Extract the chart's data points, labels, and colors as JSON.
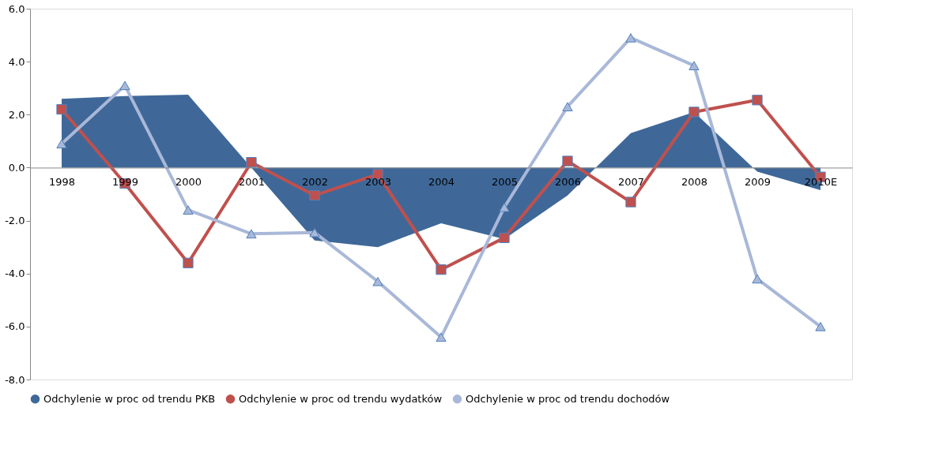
{
  "chart_data": {
    "type": "line",
    "categories": [
      "1998",
      "1999",
      "2000",
      "2001",
      "2002",
      "2003",
      "2004",
      "2005",
      "2006",
      "2007",
      "2008",
      "2009",
      "2010E"
    ],
    "series": [
      {
        "name": "Odchylenie w proc od trendu PKB",
        "type": "area",
        "color": "#3f6899",
        "values": [
          2.6,
          2.7,
          2.75,
          0.0,
          -2.75,
          -3.0,
          -2.1,
          -2.7,
          -1.05,
          1.3,
          2.1,
          -0.15,
          -0.85
        ]
      },
      {
        "name": "Odchylenie w proc od trendu wydatków",
        "marker": "square",
        "color": "#c0504d",
        "values": [
          2.2,
          -0.6,
          -3.6,
          0.2,
          -1.05,
          -0.25,
          -3.85,
          -2.65,
          0.25,
          -1.3,
          2.1,
          2.55,
          -0.35
        ]
      },
      {
        "name": "Odchylenie w proc od trendu dochodów",
        "marker": "triangle",
        "color": "#a9b8d8",
        "values": [
          0.9,
          3.1,
          -1.6,
          -2.5,
          -2.45,
          -4.3,
          -6.4,
          -1.5,
          2.3,
          4.9,
          3.85,
          -4.2,
          -6.0
        ]
      }
    ],
    "ylim": [
      -8,
      6
    ],
    "yticks": [
      {
        "value": -8,
        "label": "-8.0"
      },
      {
        "value": -6,
        "label": "-6.0"
      },
      {
        "value": -4,
        "label": "-4.0"
      },
      {
        "value": -2,
        "label": "-2.0"
      },
      {
        "value": 0,
        "label": "0.0"
      },
      {
        "value": 2,
        "label": "2.0"
      },
      {
        "value": 4,
        "label": "4.0"
      },
      {
        "value": 6,
        "label": "6.0"
      }
    ],
    "grid": false,
    "legend": "bottom",
    "line_style": "solid"
  }
}
